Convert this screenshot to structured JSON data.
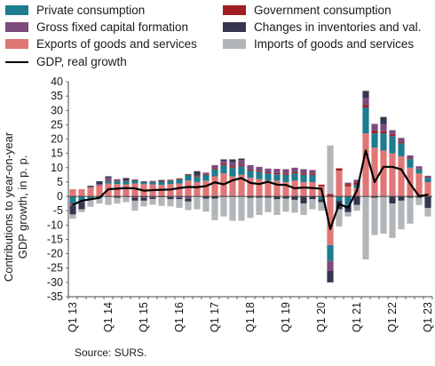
{
  "chart_data": {
    "type": "bar",
    "subtype": "stacked-bar-with-line",
    "source": "Source: SURS.",
    "ylabel_lines": [
      "Contributions to year-on-year",
      "GDP growth, in p. p."
    ],
    "ylim": [
      -35,
      40
    ],
    "yticks": [
      40,
      35,
      30,
      25,
      20,
      15,
      10,
      5,
      0,
      -5,
      -10,
      -15,
      -20,
      -25,
      -30,
      -35
    ],
    "grid": false,
    "legend_position": "top",
    "xtick_labels": [
      {
        "index": 0,
        "label": "Q1 13"
      },
      {
        "index": 4,
        "label": "Q1 14"
      },
      {
        "index": 8,
        "label": "Q1 15"
      },
      {
        "index": 12,
        "label": "Q1 16"
      },
      {
        "index": 16,
        "label": "Q1 17"
      },
      {
        "index": 20,
        "label": "Q1 18"
      },
      {
        "index": 24,
        "label": "Q1 19"
      },
      {
        "index": 28,
        "label": "Q1 20"
      },
      {
        "index": 32,
        "label": "Q1 21"
      },
      {
        "index": 36,
        "label": "Q1 22"
      },
      {
        "index": 40,
        "label": "Q1 23"
      }
    ],
    "categories": [
      "Q1 13",
      "Q2 13",
      "Q3 13",
      "Q4 13",
      "Q1 14",
      "Q2 14",
      "Q3 14",
      "Q4 14",
      "Q1 15",
      "Q2 15",
      "Q3 15",
      "Q4 15",
      "Q1 16",
      "Q2 16",
      "Q3 16",
      "Q4 16",
      "Q1 17",
      "Q2 17",
      "Q3 17",
      "Q4 17",
      "Q1 18",
      "Q2 18",
      "Q3 18",
      "Q4 18",
      "Q1 19",
      "Q2 19",
      "Q3 19",
      "Q4 19",
      "Q1 20",
      "Q2 20",
      "Q3 20",
      "Q4 20",
      "Q1 21",
      "Q2 21",
      "Q3 21",
      "Q4 21",
      "Q1 22",
      "Q2 22",
      "Q3 22",
      "Q4 22",
      "Q1 23"
    ],
    "series": [
      {
        "name": "Exports of goods and services",
        "color": "#e07676",
        "values": [
          2.5,
          2.5,
          3.2,
          3.8,
          4.5,
          4.3,
          4.2,
          4.5,
          4.3,
          4.2,
          4.0,
          4.3,
          4.5,
          5.5,
          5.0,
          5.5,
          7.0,
          8.0,
          7.0,
          7.5,
          6.5,
          6.0,
          5.5,
          5.5,
          5.0,
          5.5,
          5.0,
          5.0,
          3.5,
          -17,
          9.0,
          3.5,
          3.0,
          22.0,
          17.0,
          16.0,
          15.0,
          14.0,
          10.0,
          8.0,
          5.0
        ]
      },
      {
        "name": "Private consumption",
        "color": "#1e7c91",
        "values": [
          -2.5,
          -1.5,
          -1.0,
          -0.5,
          0.8,
          1.0,
          1.2,
          1.2,
          0.8,
          1.0,
          1.0,
          1.2,
          1.5,
          2.0,
          1.8,
          2.0,
          2.5,
          2.8,
          3.0,
          3.0,
          2.5,
          2.5,
          2.5,
          2.2,
          2.5,
          2.5,
          2.5,
          2.5,
          -1.0,
          -5.5,
          -1.5,
          -3.0,
          1.0,
          9.0,
          5.0,
          6.0,
          6.0,
          4.5,
          3.0,
          1.5,
          1.5
        ]
      },
      {
        "name": "Government consumption",
        "color": "#a11d22",
        "values": [
          -0.3,
          -0.2,
          -0.1,
          0.0,
          0.2,
          0.2,
          0.2,
          0.2,
          0.2,
          0.2,
          0.2,
          0.3,
          0.3,
          0.3,
          0.3,
          0.3,
          0.4,
          0.4,
          0.4,
          0.4,
          0.4,
          0.4,
          0.4,
          0.4,
          0.5,
          0.5,
          0.5,
          0.5,
          0.6,
          0.8,
          0.8,
          0.8,
          0.8,
          0.8,
          0.8,
          0.7,
          0.6,
          0.4,
          0.3,
          0.2,
          0.2
        ]
      },
      {
        "name": "Gross fixed capital formation",
        "color": "#7d4a7c",
        "values": [
          -0.5,
          -0.3,
          0.0,
          0.5,
          1.0,
          0.5,
          0.0,
          -0.5,
          -0.5,
          -0.4,
          -0.3,
          -0.2,
          -0.5,
          -0.8,
          0.2,
          0.5,
          1.0,
          1.2,
          1.5,
          1.8,
          1.5,
          1.4,
          1.3,
          1.5,
          1.5,
          1.5,
          1.5,
          1.2,
          0.0,
          -3.5,
          0.0,
          0.5,
          1.0,
          2.5,
          2.5,
          2.5,
          1.5,
          1.5,
          1.0,
          0.8,
          0.5
        ]
      },
      {
        "name": "Changes in inventories and val.",
        "color": "#34364f",
        "values": [
          -3.0,
          -2.5,
          0.5,
          1.0,
          0.5,
          -0.5,
          0.8,
          -1.0,
          -1.0,
          -0.5,
          0.5,
          -0.8,
          -0.5,
          -1.0,
          1.5,
          -0.8,
          -0.8,
          0.5,
          1.0,
          0.5,
          -0.5,
          -0.5,
          -0.5,
          -1.0,
          -0.8,
          -1.2,
          -2.5,
          -1.0,
          -1.0,
          -4.0,
          -3.0,
          -2.5,
          -3.0,
          2.5,
          -0.5,
          2.5,
          -2.5,
          -1.5,
          -0.5,
          -0.5,
          -4.0
        ]
      },
      {
        "name": "Imports of goods and services",
        "color": "#b3b6b8",
        "values": [
          -1.5,
          -1.0,
          -2.5,
          -2.0,
          -3.0,
          -2.0,
          -2.0,
          -3.5,
          -2.0,
          -2.0,
          -3.0,
          -2.5,
          -3.0,
          -3.0,
          -4.5,
          -4.5,
          -7.5,
          -7.0,
          -8.5,
          -8.5,
          -7.0,
          -6.0,
          -5.0,
          -5.5,
          -4.5,
          -4.5,
          -4.0,
          -3.5,
          -3.0,
          17.0,
          -6.0,
          -1.5,
          -2.0,
          -22.0,
          -13.0,
          -13.0,
          -12.0,
          -10.0,
          -9.0,
          -2.5,
          -3.0
        ]
      }
    ],
    "line": {
      "name": "GDP, real growth",
      "color": "#000000",
      "values": [
        -3.0,
        -1.5,
        -1.0,
        -0.5,
        2.5,
        2.7,
        2.9,
        2.8,
        2.0,
        2.2,
        2.3,
        2.4,
        2.9,
        3.3,
        3.2,
        3.6,
        4.9,
        4.2,
        5.6,
        6.4,
        4.7,
        4.3,
        5.1,
        4.1,
        4.0,
        2.8,
        3.1,
        2.9,
        2.7,
        -11.4,
        -2.6,
        -4.0,
        2.0,
        16.0,
        5.0,
        10.3,
        10.3,
        9.4,
        4.4,
        0.1,
        0.6
      ]
    },
    "legend": [
      {
        "series": "Private consumption",
        "kind": "box"
      },
      {
        "series": "Government consumption",
        "kind": "box"
      },
      {
        "series": "Gross fixed capital formation",
        "kind": "box"
      },
      {
        "series": "Changes in inventories and val.",
        "kind": "box"
      },
      {
        "series": "Exports of goods and services",
        "kind": "box"
      },
      {
        "series": "Imports of goods and services",
        "kind": "box"
      },
      {
        "series": "GDP, real growth",
        "kind": "line"
      }
    ]
  }
}
